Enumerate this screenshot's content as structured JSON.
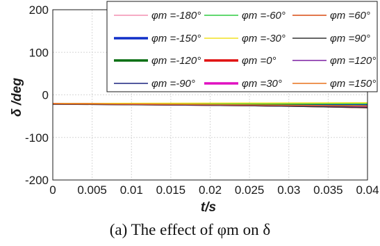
{
  "chart_data": {
    "type": "line",
    "title": "",
    "caption": "(a) The effect of φm on δ",
    "xlabel": "t/s",
    "ylabel": "δ /deg",
    "xlim": [
      0,
      0.04
    ],
    "ylim": [
      -200,
      200
    ],
    "xticks": [
      "0",
      "0.005",
      "0.01",
      "0.015",
      "0.02",
      "0.025",
      "0.03",
      "0.035",
      "0.04"
    ],
    "yticks": [
      "200",
      "100",
      "0",
      "-100",
      "-200"
    ],
    "grid": true,
    "legend_placement": "top-right",
    "legend_columns": 3,
    "x": [
      0,
      0.005,
      0.01,
      0.015,
      0.02,
      0.025,
      0.03,
      0.035,
      0.04
    ],
    "series": [
      {
        "name": "φm =-180°",
        "color": "#f48fb1",
        "width": 1.5,
        "values": [
          -20,
          -20.5,
          -21,
          -21.5,
          -22,
          -23,
          -24,
          -25,
          -26
        ]
      },
      {
        "name": "φm =-150°",
        "color": "#1030c8",
        "width": 3.5,
        "values": [
          -21,
          -21.2,
          -21.4,
          -21.6,
          -21.8,
          -22,
          -22.2,
          -22.4,
          -22.6
        ]
      },
      {
        "name": "φm =-120°",
        "color": "#0a6e12",
        "width": 3.5,
        "values": [
          -21,
          -21.5,
          -22,
          -22.5,
          -23,
          -23.5,
          -24,
          -25,
          -26
        ]
      },
      {
        "name": "φm =-90°",
        "color": "#1a237e",
        "width": 1.5,
        "values": [
          -22,
          -22.5,
          -23,
          -23.5,
          -24,
          -25,
          -26,
          -27,
          -28
        ]
      },
      {
        "name": "φm =-60°",
        "color": "#2ecc40",
        "width": 1.5,
        "values": [
          -20,
          -20.2,
          -20.4,
          -20.6,
          -20.8,
          -21,
          -21,
          -21,
          -21
        ]
      },
      {
        "name": "φm =-30°",
        "color": "#f0e020",
        "width": 1.5,
        "values": [
          -20,
          -20,
          -19.8,
          -19.6,
          -19.4,
          -19.2,
          -19,
          -18.8,
          -18.5
        ]
      },
      {
        "name": "φm =0°",
        "color": "#e01010",
        "width": 3.5,
        "values": [
          -21,
          -21.8,
          -22.6,
          -23.4,
          -24.2,
          -25.2,
          -26.4,
          -28,
          -30
        ]
      },
      {
        "name": "φm =30°",
        "color": "#e010c0",
        "width": 3.5,
        "values": [
          -21,
          -21.6,
          -22.2,
          -22.8,
          -23.6,
          -24.5,
          -25.5,
          -26.5,
          -28
        ]
      },
      {
        "name": "φm =60°",
        "color": "#d84a10",
        "width": 1.5,
        "values": [
          -21,
          -21.5,
          -22,
          -22.6,
          -23.2,
          -24,
          -25,
          -26,
          -27
        ]
      },
      {
        "name": "φm =90°",
        "color": "#333333",
        "width": 1.5,
        "values": [
          -22,
          -22.6,
          -23.2,
          -23.8,
          -24.6,
          -25.6,
          -26.8,
          -28.4,
          -30
        ]
      },
      {
        "name": "φm =120°",
        "color": "#7b1fa2",
        "width": 1.5,
        "values": [
          -21,
          -21.6,
          -22.2,
          -22.8,
          -23.4,
          -24.2,
          -25,
          -26,
          -27
        ]
      },
      {
        "name": "φm =150°",
        "color": "#e8721c",
        "width": 1.5,
        "values": [
          -21,
          -21.4,
          -21.8,
          -22.2,
          -22.8,
          -23.5,
          -24.2,
          -25,
          -26
        ]
      }
    ]
  }
}
